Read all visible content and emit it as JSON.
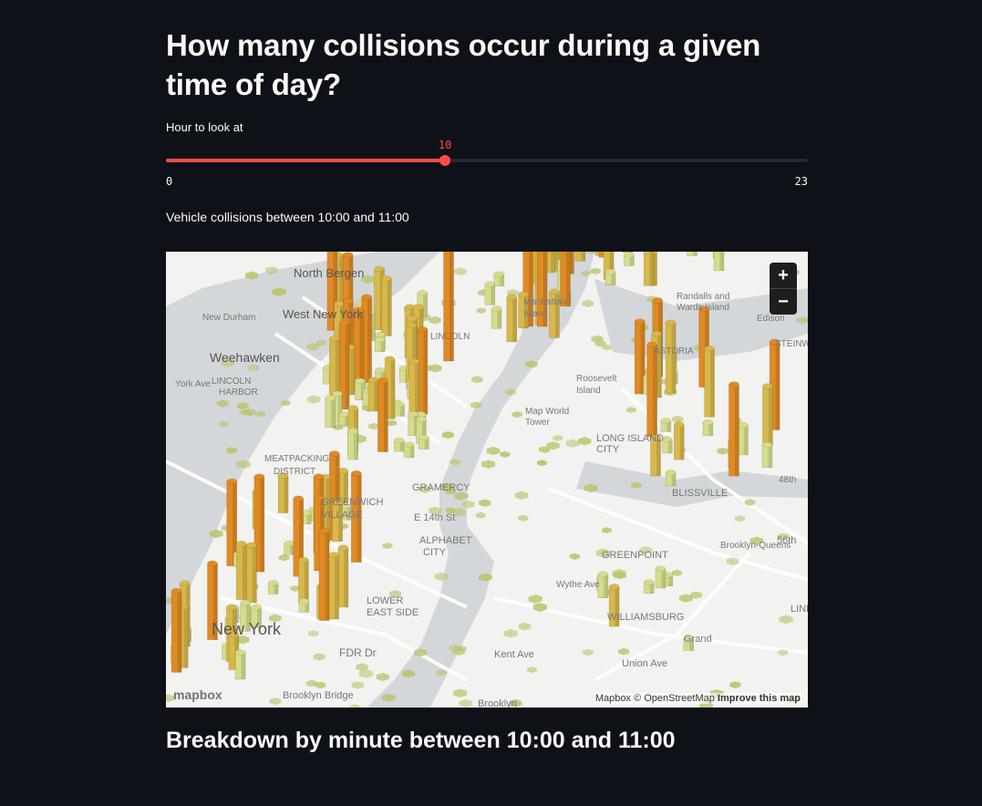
{
  "title": "How many collisions occur during a given time of day?",
  "slider": {
    "label": "Hour to look at",
    "value": 10,
    "value_text": "10",
    "min": 0,
    "max": 23,
    "min_text": "0",
    "max_text": "23",
    "accent_color": "#ff4b4b",
    "track_color": "#262730"
  },
  "caption": "Vehicle collisions between 10:00 and 11:00",
  "map": {
    "zoom_in_icon": "plus-icon",
    "zoom_out_icon": "minus-icon",
    "zoom_in_label": "+",
    "zoom_out_label": "−",
    "logo_text": "mapbox",
    "attribution": "Mapbox © OpenStreetMap",
    "attribution_link": "Improve this map",
    "place_labels": [
      "North Bergen",
      "West New York",
      "New Durham",
      "Weehawken",
      "LINCOLN",
      "HARBOR",
      "Manhattan",
      "Island",
      "Randalls and",
      "Wards Island",
      "Edison",
      "ASTORIA",
      "STEINWAY",
      "Roosevelt",
      "Island",
      "LONG ISLAND",
      "CITY",
      "BLISSVILLE",
      "MEATPACKING",
      "DISTRICT",
      "GREENWICH",
      "VILLAGE",
      "E 14th St",
      "ALPHABET",
      "CITY",
      "GREENPOINT",
      "LOWER",
      "EAST SIDE",
      "WILLIAMSBURG",
      "FDR Dr",
      "Kent Ave",
      "Union Ave",
      "Brooklyn Bridge",
      "Brooklyn",
      "Brooklyn-Queens",
      "56th",
      "48th",
      "LINDEN",
      "New York",
      "Map World",
      "Tower",
      "LINCOLN",
      "GRAMERCY",
      "York Ave",
      "Wythe Ave",
      "Grand"
    ],
    "colors": {
      "land": "#f2f2f0",
      "water": "#d3d7d9",
      "road": "#ffffff",
      "hex_low": "#b8c46a",
      "bar_low": "#d6dc8c",
      "bar_mid": "#d8b84a",
      "bar_high": "#e08a24"
    }
  },
  "section_title": "Breakdown by minute between 10:00 and 11:00"
}
